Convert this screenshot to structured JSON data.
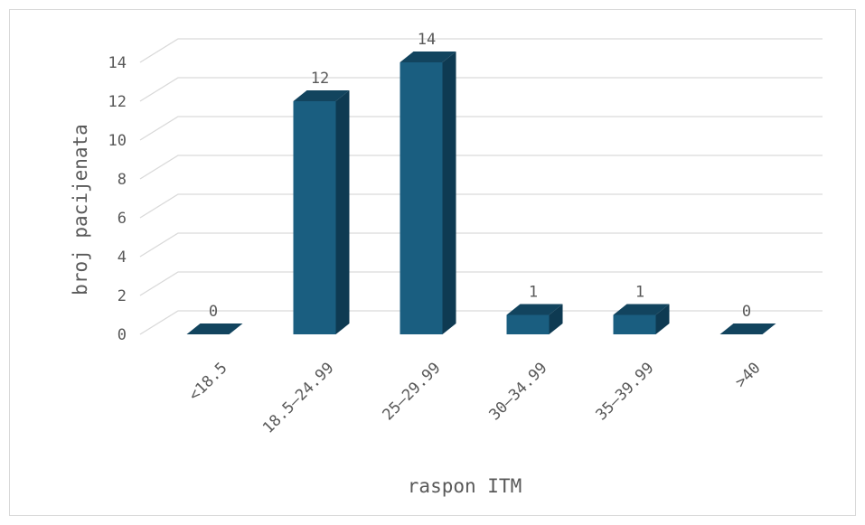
{
  "chart_data": {
    "type": "bar",
    "style": "3d-clustered-column",
    "categories": [
      "<18.5",
      "18.5–24.99",
      "25–29.99",
      "30–34.99",
      "35–39.99",
      ">40"
    ],
    "values": [
      0,
      12,
      14,
      1,
      1,
      0
    ],
    "xlabel": "raspon ITM",
    "ylabel": "broj pacijenata",
    "ylim": [
      0,
      14
    ],
    "yticks": [
      0,
      2,
      4,
      6,
      8,
      10,
      12,
      14
    ],
    "grid": true,
    "legend": "none",
    "data_labels": true,
    "colors": {
      "bar_front": "#1a5e80",
      "bar_top": "#12445e",
      "bar_side": "#0e3a52",
      "grid": "#d9d9d9",
      "text": "#595959"
    }
  }
}
